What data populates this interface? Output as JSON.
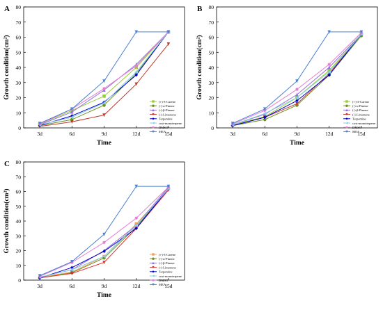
{
  "chart_data": [
    {
      "panel": "A",
      "type": "line",
      "xlabel": "Time",
      "ylabel": "Growth condition(cm²)",
      "categories": [
        "3d",
        "6d",
        "9d",
        "12d",
        "15d"
      ],
      "ylim": [
        0,
        80
      ],
      "yticks": [
        0,
        10,
        20,
        30,
        40,
        50,
        60,
        70,
        80
      ],
      "legend_position": "right",
      "series": [
        {
          "name": "(+)-3-Carene",
          "color": "#9acd32",
          "marker": "square",
          "values": [
            2.5,
            11.5,
            21,
            40,
            63.5
          ]
        },
        {
          "name": "(-)-α-Pinene",
          "color": "#6b8e23",
          "marker": "circle",
          "values": [
            1.5,
            5.5,
            15,
            36,
            63.5
          ]
        },
        {
          "name": "(-)-β-Pinene",
          "color": "#9370db",
          "marker": "triangle-up",
          "values": [
            2,
            10.5,
            25,
            42,
            63.5
          ]
        },
        {
          "name": "(-)-Limonene",
          "color": "#c0392b",
          "marker": "triangle-down",
          "values": [
            1,
            4,
            8.5,
            29,
            55.5
          ]
        },
        {
          "name": "Terpentine",
          "color": "#0000cd",
          "marker": "diamond",
          "values": [
            1.5,
            8,
            17,
            35,
            63.5
          ]
        },
        {
          "name": "cost-monoterpene",
          "color": "#87ceeb",
          "marker": "triangle-left",
          "values": [
            2,
            7,
            16.5,
            37,
            63.5
          ]
        },
        {
          "name": "DMSO",
          "color": "#e67ed1",
          "marker": "hexagon",
          "values": [
            2.5,
            12.5,
            26,
            41,
            63.5
          ]
        },
        {
          "name": "MEA",
          "color": "#4a7fd4",
          "marker": "triangle-down",
          "values": [
            3,
            12.5,
            31,
            63.5,
            63.5
          ]
        }
      ]
    },
    {
      "panel": "B",
      "type": "line",
      "xlabel": "Time",
      "ylabel": "Growth condition(cm²)",
      "categories": [
        "3d",
        "6d",
        "9d",
        "12d",
        "15d"
      ],
      "ylim": [
        0,
        80
      ],
      "yticks": [
        0,
        10,
        20,
        30,
        40,
        50,
        60,
        70,
        80
      ],
      "legend_position": "right",
      "series": [
        {
          "name": "(+)-3-Carene",
          "color": "#9acd32",
          "marker": "square",
          "values": [
            2,
            7.5,
            20,
            38,
            62
          ]
        },
        {
          "name": "(-)-α-Pinene",
          "color": "#6b8e23",
          "marker": "circle",
          "values": [
            1.5,
            5.5,
            15,
            35,
            61
          ]
        },
        {
          "name": "(-)-β-Pinene",
          "color": "#9370db",
          "marker": "triangle-up",
          "values": [
            2,
            9,
            22,
            40,
            62
          ]
        },
        {
          "name": "(-)-Limonene",
          "color": "#c0392b",
          "marker": "triangle-down",
          "values": [
            1.5,
            7,
            16,
            36,
            62
          ]
        },
        {
          "name": "Terpentine",
          "color": "#0000cd",
          "marker": "diamond",
          "values": [
            1.5,
            7,
            18,
            35,
            62
          ]
        },
        {
          "name": "cost-monoterpene",
          "color": "#87ceeb",
          "marker": "triangle-left",
          "values": [
            2,
            9.5,
            20,
            37,
            62
          ]
        },
        {
          "name": "DMSO",
          "color": "#e67ed1",
          "marker": "hexagon",
          "values": [
            2.5,
            11.5,
            25.5,
            42,
            63
          ]
        },
        {
          "name": "MEA",
          "color": "#4a7fd4",
          "marker": "triangle-down",
          "values": [
            3,
            12.5,
            31,
            63.5,
            63.5
          ]
        }
      ]
    },
    {
      "panel": "C",
      "type": "line",
      "xlabel": "Time",
      "ylabel": "Growth condition(cm²)",
      "categories": [
        "3d",
        "6d",
        "9d",
        "12d",
        "15d"
      ],
      "ylim": [
        0,
        80
      ],
      "yticks": [
        0,
        10,
        20,
        30,
        40,
        50,
        60,
        70,
        80
      ],
      "legend_position": "right",
      "series": [
        {
          "name": "(+)-3-Carene",
          "color": "#f0a060",
          "marker": "square",
          "values": [
            2,
            5.5,
            16,
            38,
            62
          ]
        },
        {
          "name": "(-)-α-Pinene",
          "color": "#6b8e23",
          "marker": "circle",
          "values": [
            1.5,
            5,
            15,
            36,
            62
          ]
        },
        {
          "name": "(-)-β-Pinene",
          "color": "#9370db",
          "marker": "triangle-up",
          "values": [
            2,
            7,
            20,
            37,
            63
          ]
        },
        {
          "name": "(-)-Limonene",
          "color": "#e03030",
          "marker": "triangle-down",
          "values": [
            1.5,
            4.5,
            12,
            35,
            61
          ]
        },
        {
          "name": "Terpentine",
          "color": "#0000cd",
          "marker": "diamond",
          "values": [
            1.5,
            8.5,
            19.5,
            35,
            62
          ]
        },
        {
          "name": "cost-monoterpene",
          "color": "#87ceeb",
          "marker": "triangle-left",
          "values": [
            2,
            7,
            16,
            37,
            62
          ]
        },
        {
          "name": "DMSO",
          "color": "#e67ed1",
          "marker": "hexagon",
          "values": [
            2.5,
            12,
            25.5,
            42,
            63
          ]
        },
        {
          "name": "MEA",
          "color": "#4a7fd4",
          "marker": "triangle-down",
          "values": [
            3,
            12.5,
            31,
            63.5,
            63.5
          ]
        }
      ]
    }
  ]
}
